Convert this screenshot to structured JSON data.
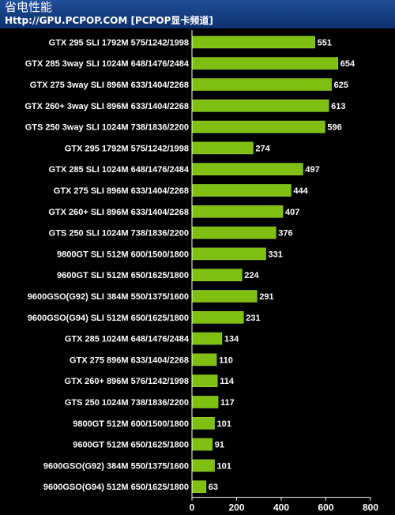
{
  "header": {
    "title": "省电性能",
    "subtitle": "Http://GPU.PCPOP.COM [PCPOP显卡频道]"
  },
  "colors": {
    "header_bg": "#1f4f99",
    "bar_fill": "#7fbf12",
    "bar_stroke": "#9ad63a",
    "background": "#000000",
    "text": "#ffffff"
  },
  "chart_data": {
    "type": "bar",
    "orientation": "horizontal",
    "categories": [
      "GTX 295 SLI  1792M 575/1242/1998",
      "GTX 285 3way SLI 1024M 648/1476/2484",
      "GTX 275 3way SLI  896M 633/1404/2268",
      "GTX 260+ 3way SLI 896M 633/1404/2268",
      "GTS 250 3way SLI 1024M 738/1836/2200",
      "GTX 295 1792M 575/1242/1998",
      "GTX 285 SLI 1024M 648/1476/2484",
      "GTX 275 SLI 896M 633/1404/2268",
      "GTX 260+ SLI 896M 633/1404/2268",
      "GTS 250 SLI 1024M 738/1836/2200",
      "9800GT SLI 512M 600/1500/1800",
      "9600GT SLI 512M 650/1625/1800",
      "9600GSO(G92) SLI 384M 550/1375/1600",
      "9600GSO(G94) SLI 512M 650/1625/1800",
      "GTX 285 1024M 648/1476/2484",
      "GTX 275 896M 633/1404/2268",
      "GTX 260+ 896M 576/1242/1998",
      "GTS 250 1024M 738/1836/2200",
      "9800GT 512M 600/1500/1800",
      "9600GT 512M 650/1625/1800",
      "9600GSO(G92) 384M 550/1375/1600",
      "9600GSO(G94) 512M 650/1625/1800"
    ],
    "values": [
      551,
      654,
      625,
      613,
      596,
      274,
      497,
      444,
      407,
      376,
      331,
      224,
      291,
      231,
      134,
      110,
      114,
      117,
      101,
      91,
      101,
      63
    ],
    "xlim": [
      0,
      800
    ],
    "xticks": [
      0,
      200,
      400,
      600,
      800
    ],
    "grid": false,
    "title": "",
    "xlabel": "",
    "ylabel": ""
  }
}
